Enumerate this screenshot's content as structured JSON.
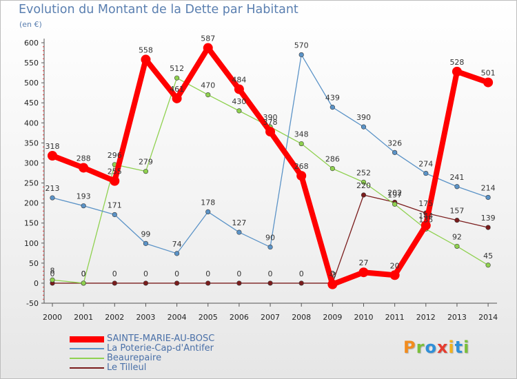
{
  "title": "Evolution du Montant de la Dette par Habitant",
  "subtitle": "(en €)",
  "brand": {
    "text": "Proxiti",
    "letters": [
      {
        "ch": "P",
        "color": "#f28c1e"
      },
      {
        "ch": "r",
        "color": "#7bbf3a"
      },
      {
        "ch": "o",
        "color": "#2f8fd8"
      },
      {
        "ch": "x",
        "color": "#e63c2f"
      },
      {
        "ch": "i",
        "color": "#f2b21e"
      },
      {
        "ch": "t",
        "color": "#2f8fd8"
      },
      {
        "ch": "i",
        "color": "#7bbf3a"
      }
    ]
  },
  "chart_data": {
    "type": "line",
    "title": "Evolution du Montant de la Dette par Habitant",
    "ylabel": "(en €)",
    "xlabel": "",
    "x": [
      "2000",
      "2001",
      "2002",
      "2003",
      "2004",
      "2005",
      "2006",
      "2007",
      "2008",
      "2009",
      "2010",
      "2011",
      "2012",
      "2013",
      "2014"
    ],
    "ylim": [
      -50,
      600
    ],
    "yticks": [
      -50,
      0,
      50,
      100,
      150,
      200,
      250,
      300,
      350,
      400,
      450,
      500,
      550,
      600
    ],
    "grid": false,
    "legend_position": "bottom-left",
    "series": [
      {
        "name": "SAINTE-MARIE-AU-BOSC",
        "color": "#ff0000",
        "values": [
          318,
          288,
          255,
          558,
          461,
          587,
          484,
          378,
          268,
          -3,
          27,
          20,
          144,
          528,
          501
        ],
        "labels": [
          "318",
          "288",
          "255",
          "558",
          "461",
          "587",
          "484",
          "378",
          "268",
          "-3",
          "27",
          "20",
          "144",
          "528",
          "501"
        ]
      },
      {
        "name": "La Poterie-Cap-d'Antifer",
        "color": "#5b93c7",
        "values": [
          213,
          193,
          171,
          99,
          74,
          178,
          127,
          90,
          570,
          439,
          390,
          326,
          274,
          241,
          214
        ],
        "labels": [
          "213",
          "193",
          "171",
          "99",
          "74",
          "178",
          "127",
          "90",
          "570",
          "439",
          "390",
          "326",
          "274",
          "241",
          "214"
        ]
      },
      {
        "name": "Beaurepaire",
        "color": "#8fd14f",
        "values": [
          8,
          0,
          296,
          279,
          512,
          470,
          430,
          390,
          348,
          286,
          252,
          197,
          135,
          92,
          45
        ],
        "labels": [
          "8",
          "0",
          "296",
          "279",
          "512",
          "470",
          "430",
          "390",
          "348",
          "286",
          "252",
          "197",
          "135",
          "92",
          "45"
        ]
      },
      {
        "name": "Le Tilleul",
        "color": "#7a1c1c",
        "values": [
          0,
          0,
          0,
          0,
          0,
          0,
          0,
          0,
          0,
          0,
          220,
          202,
          175,
          157,
          139
        ],
        "labels": [
          "0",
          "0",
          "0",
          "0",
          "0",
          "0",
          "0",
          "0",
          "0",
          "0",
          "220",
          "202",
          "175",
          "157",
          "139"
        ]
      }
    ]
  }
}
